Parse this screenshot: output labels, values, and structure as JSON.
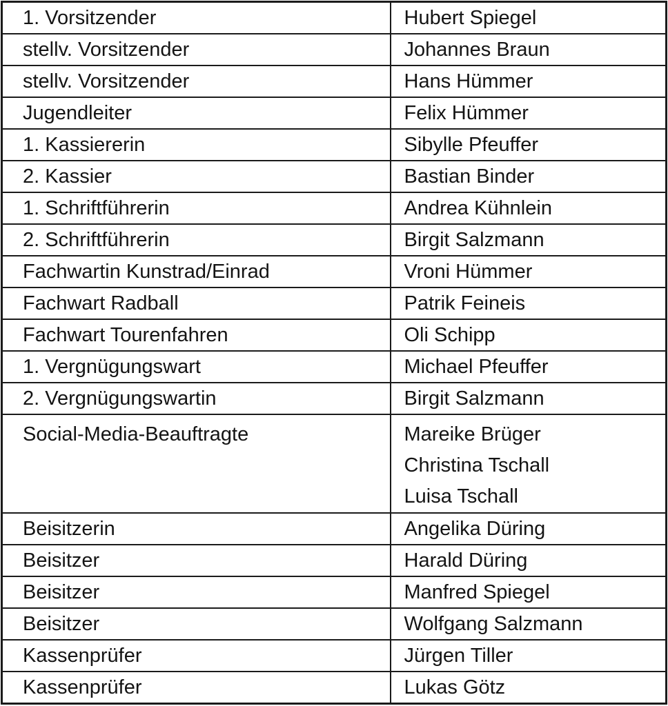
{
  "colors": {
    "background": "#ffffff",
    "border": "#1a1a1a",
    "text": "#141414"
  },
  "table": {
    "rows": [
      {
        "role": "1. Vorsitzender",
        "names": [
          "Hubert Spiegel"
        ]
      },
      {
        "role": "stellv. Vorsitzender",
        "names": [
          "Johannes Braun"
        ]
      },
      {
        "role": "stellv. Vorsitzender",
        "names": [
          "Hans Hümmer"
        ]
      },
      {
        "role": "Jugendleiter",
        "names": [
          "Felix Hümmer"
        ]
      },
      {
        "role": "1. Kassiererin",
        "names": [
          "Sibylle Pfeuffer"
        ]
      },
      {
        "role": "2. Kassier",
        "names": [
          "Bastian Binder"
        ]
      },
      {
        "role": "1. Schriftführerin",
        "names": [
          "Andrea Kühnlein"
        ]
      },
      {
        "role": "2. Schriftführerin",
        "names": [
          "Birgit Salzmann"
        ]
      },
      {
        "role": "Fachwartin Kunstrad/Einrad",
        "names": [
          "Vroni Hümmer"
        ]
      },
      {
        "role": "Fachwart Radball",
        "names": [
          "Patrik Feineis"
        ]
      },
      {
        "role": "Fachwart Tourenfahren",
        "names": [
          "Oli Schipp"
        ]
      },
      {
        "role": "1. Vergnügungswart",
        "names": [
          "Michael Pfeuffer"
        ]
      },
      {
        "role": "2. Vergnügungswartin",
        "names": [
          "Birgit Salzmann"
        ]
      },
      {
        "role": "Social-Media-Beauftragte",
        "names": [
          "Mareike Brüger",
          "Christina Tschall",
          "Luisa Tschall"
        ]
      },
      {
        "role": "Beisitzerin",
        "names": [
          "Angelika Düring"
        ]
      },
      {
        "role": "Beisitzer",
        "names": [
          "Harald Düring"
        ]
      },
      {
        "role": "Beisitzer",
        "names": [
          "Manfred Spiegel"
        ]
      },
      {
        "role": "Beisitzer",
        "names": [
          "Wolfgang Salzmann"
        ]
      },
      {
        "role": "Kassenprüfer",
        "names": [
          "Jürgen Tiller"
        ]
      },
      {
        "role": "Kassenprüfer",
        "names": [
          "Lukas Götz"
        ]
      }
    ]
  }
}
